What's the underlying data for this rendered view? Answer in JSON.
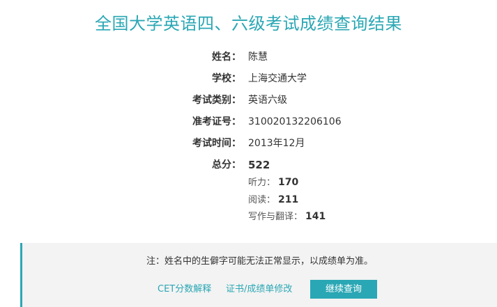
{
  "title": "全国大学英语四、六级考试成绩查询结果",
  "info": {
    "name_label": "姓名：",
    "name_value": "陈慧",
    "school_label": "学校：",
    "school_value": "上海交通大学",
    "exam_type_label": "考试类别：",
    "exam_type_value": "英语六级",
    "ticket_label": "准考证号：",
    "ticket_value": "310020132206106",
    "exam_time_label": "考试时间：",
    "exam_time_value": "2013年12月"
  },
  "scores": {
    "total_label": "总分：",
    "total_value": "522",
    "listening_label": "听力：",
    "listening_value": "170",
    "reading_label": "阅读：",
    "reading_value": "211",
    "writing_label": "写作与翻译：",
    "writing_value": "141"
  },
  "notice": {
    "text": "注：姓名中的生僻字可能无法正常显示，以成绩单为准。"
  },
  "actions": {
    "cet_explain": "CET分数解释",
    "cert_modify": "证书/成绩单修改",
    "continue_query": "继续查询"
  },
  "colors": {
    "accent": "#2aa7b4",
    "total_score": "#c9392f",
    "notice_bg": "#f3f3f3"
  }
}
